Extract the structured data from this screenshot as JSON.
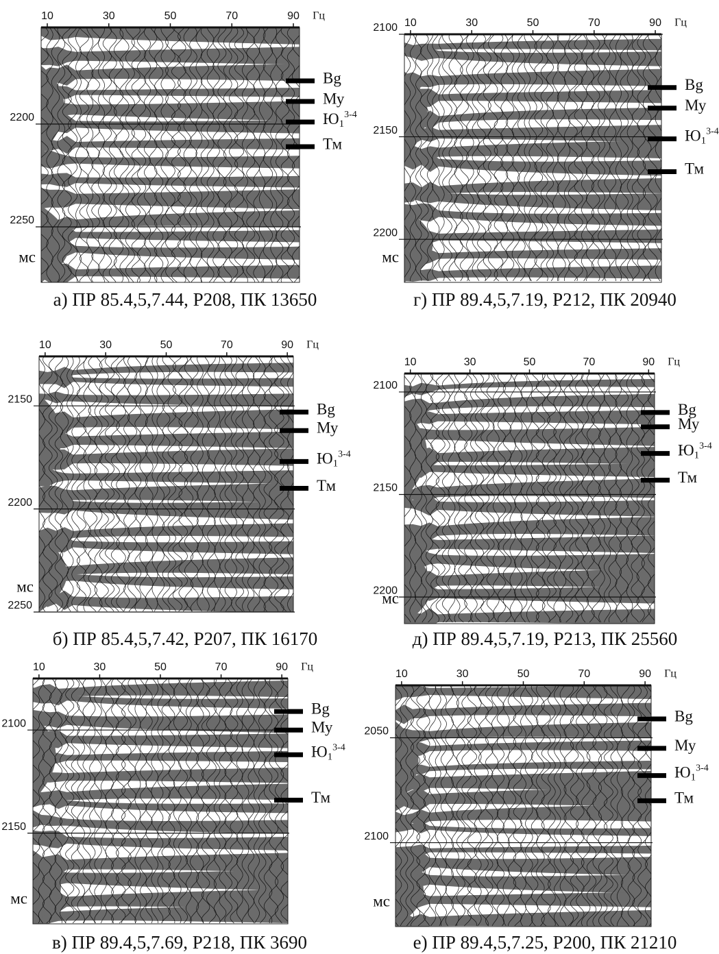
{
  "chart_data": [
    {
      "type": "seismic-spectrum",
      "caption": "а) ПР 85.4,5,7.44, Р208, ПК 13650",
      "x_unit": "Гц",
      "y_unit": "мс",
      "xlim": [
        8,
        92
      ],
      "xticks": [
        10,
        30,
        50,
        70,
        90
      ],
      "ylim": [
        2153,
        2277
      ],
      "yticks": [
        2200,
        2250
      ],
      "grid": true,
      "horizons": [
        {
          "label": "Bg",
          "time": 2179
        },
        {
          "label": "Му",
          "time": 2189
        },
        {
          "label": {
            "base": "Ю",
            "sub": "1",
            "sup": "3-4"
          },
          "time": 2199
        },
        {
          "label": "Тм",
          "time": 2211
        }
      ]
    },
    {
      "type": "seismic-spectrum",
      "caption": "б) ПР 85.4,5,7.42, Р207, ПК  16170",
      "x_unit": "Гц",
      "y_unit": "мс",
      "xlim": [
        8,
        92
      ],
      "xticks": [
        10,
        30,
        50,
        70,
        90
      ],
      "ylim": [
        2126,
        2250
      ],
      "yticks": [
        2150,
        2200,
        2250
      ],
      "grid": true,
      "horizons": [
        {
          "label": "Bg",
          "time": 2153
        },
        {
          "label": "Му",
          "time": 2162
        },
        {
          "label": {
            "base": "Ю",
            "sub": "1",
            "sup": "3-4"
          },
          "time": 2177
        },
        {
          "label": "Тм",
          "time": 2190
        }
      ]
    },
    {
      "type": "seismic-spectrum",
      "caption": "в) ПР 89.4,5,7.69, Р218, ПК 3690",
      "x_unit": "Гц",
      "y_unit": "мс",
      "xlim": [
        8,
        92
      ],
      "xticks": [
        10,
        30,
        50,
        70,
        90
      ],
      "ylim": [
        2075,
        2194
      ],
      "yticks": [
        2100,
        2150
      ],
      "grid": true,
      "horizons": [
        {
          "label": "Bg",
          "time": 2091
        },
        {
          "label": "Му",
          "time": 2100
        },
        {
          "label": {
            "base": "Ю",
            "sub": "1",
            "sup": "3-4"
          },
          "time": 2112
        },
        {
          "label": "Тм",
          "time": 2134
        }
      ]
    },
    {
      "type": "seismic-spectrum",
      "caption": "г) ПР 89.4,5,7.19, Р212, ПК 20940",
      "x_unit": "Гц",
      "y_unit": "мс",
      "xlim": [
        8,
        92
      ],
      "xticks": [
        10,
        30,
        50,
        70,
        90
      ],
      "ylim": [
        2100,
        2221
      ],
      "yticks": [
        2100,
        2150,
        2200
      ],
      "grid": true,
      "horizons": [
        {
          "label": "Bg",
          "time": 2126
        },
        {
          "label": "Му",
          "time": 2136
        },
        {
          "label": {
            "base": "Ю",
            "sub": "1",
            "sup": "3-4"
          },
          "time": 2151
        },
        {
          "label": "Тм",
          "time": 2167
        }
      ]
    },
    {
      "type": "seismic-spectrum",
      "caption": "д) ПР 89.4,5,7.19, Р213, ПК 25560",
      "x_unit": "Гц",
      "y_unit": "мс",
      "xlim": [
        8,
        92
      ],
      "xticks": [
        10,
        30,
        50,
        70,
        90
      ],
      "ylim": [
        2091,
        2213
      ],
      "yticks": [
        2100,
        2150,
        2200
      ],
      "grid": true,
      "horizons": [
        {
          "label": "Bg",
          "time": 2110
        },
        {
          "label": "Му",
          "time": 2117
        },
        {
          "label": {
            "base": "Ю",
            "sub": "1",
            "sup": "3-4"
          },
          "time": 2130
        },
        {
          "label": "Тм",
          "time": 2143
        }
      ]
    },
    {
      "type": "seismic-spectrum",
      "caption": "е) ПР 89.4,5,7.25, Р200, ПК 21210",
      "x_unit": "Гц",
      "y_unit": "мс",
      "xlim": [
        8,
        92
      ],
      "xticks": [
        10,
        30,
        50,
        70,
        90
      ],
      "ylim": [
        2025,
        2140
      ],
      "yticks": [
        2050,
        2100
      ],
      "grid": true,
      "horizons": [
        {
          "label": "Bg",
          "time": 2041
        },
        {
          "label": "Му",
          "time": 2055
        },
        {
          "label": {
            "base": "Ю",
            "sub": "1",
            "sup": "3-4"
          },
          "time": 2068
        },
        {
          "label": "Тм",
          "time": 2080
        }
      ]
    }
  ]
}
